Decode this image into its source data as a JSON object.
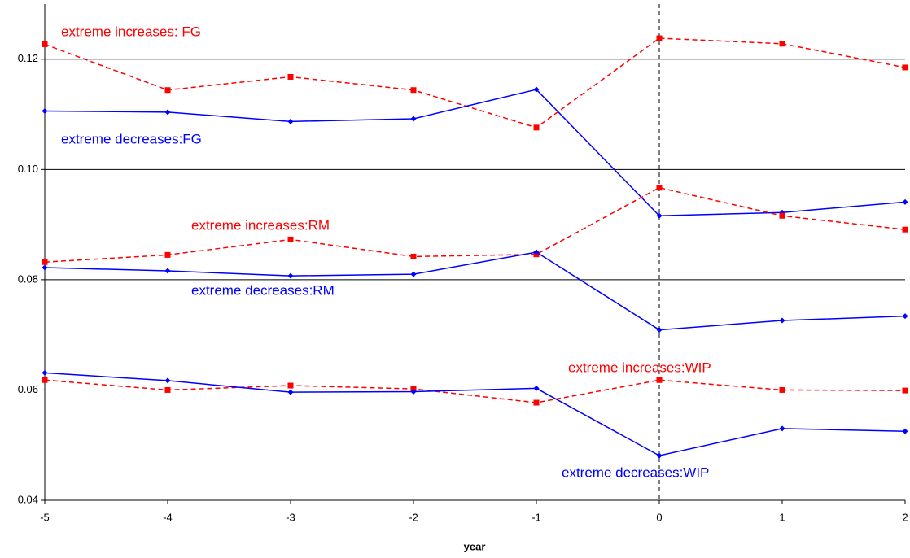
{
  "chart_data": {
    "type": "line",
    "x_label": "year",
    "x": [
      -5,
      -4,
      -3,
      -2,
      -1,
      0,
      1,
      2
    ],
    "xlim": [
      -5,
      2
    ],
    "xticks": [
      -5,
      -4,
      -3,
      -2,
      -1,
      0,
      1,
      2
    ],
    "ylim": [
      0.04,
      0.13
    ],
    "yticks": [
      0.04,
      0.06,
      0.08,
      {
        "value": 0.1,
        "label": "0.10"
      },
      0.12
    ],
    "grid": true,
    "vline": 0,
    "series": [
      {
        "name": "extreme increases: FG",
        "color": "#ff0000",
        "line_style": "dashed",
        "marker": "square",
        "values": [
          0.1227,
          0.1144,
          0.1168,
          0.1144,
          0.1076,
          0.1238,
          0.1228,
          0.1185
        ]
      },
      {
        "name": "extreme decreases:FG",
        "color": "#0000ff",
        "line_style": "solid",
        "marker": "diamond",
        "values": [
          0.1106,
          0.1104,
          0.1087,
          0.1092,
          0.1145,
          0.0916,
          0.0922,
          0.0941
        ]
      },
      {
        "name": "extreme increases:RM",
        "color": "#ff0000",
        "line_style": "dashed",
        "marker": "square",
        "values": [
          0.0832,
          0.0845,
          0.0873,
          0.0842,
          0.0846,
          0.0967,
          0.0916,
          0.0891
        ]
      },
      {
        "name": "extreme decreases:RM",
        "color": "#0000ff",
        "line_style": "solid",
        "marker": "diamond",
        "values": [
          0.0822,
          0.0816,
          0.0807,
          0.081,
          0.085,
          0.0709,
          0.0726,
          0.0734
        ]
      },
      {
        "name": "extreme increases:WIP",
        "color": "#ff0000",
        "line_style": "dashed",
        "marker": "square",
        "values": [
          0.0618,
          0.06,
          0.0608,
          0.0602,
          0.0577,
          0.0618,
          0.06,
          0.0599
        ]
      },
      {
        "name": "extreme decreases:WIP",
        "color": "#0000ff",
        "line_style": "solid",
        "marker": "diamond",
        "values": [
          0.0631,
          0.0617,
          0.0596,
          0.0597,
          0.0603,
          0.0481,
          0.053,
          0.0525
        ]
      }
    ]
  }
}
